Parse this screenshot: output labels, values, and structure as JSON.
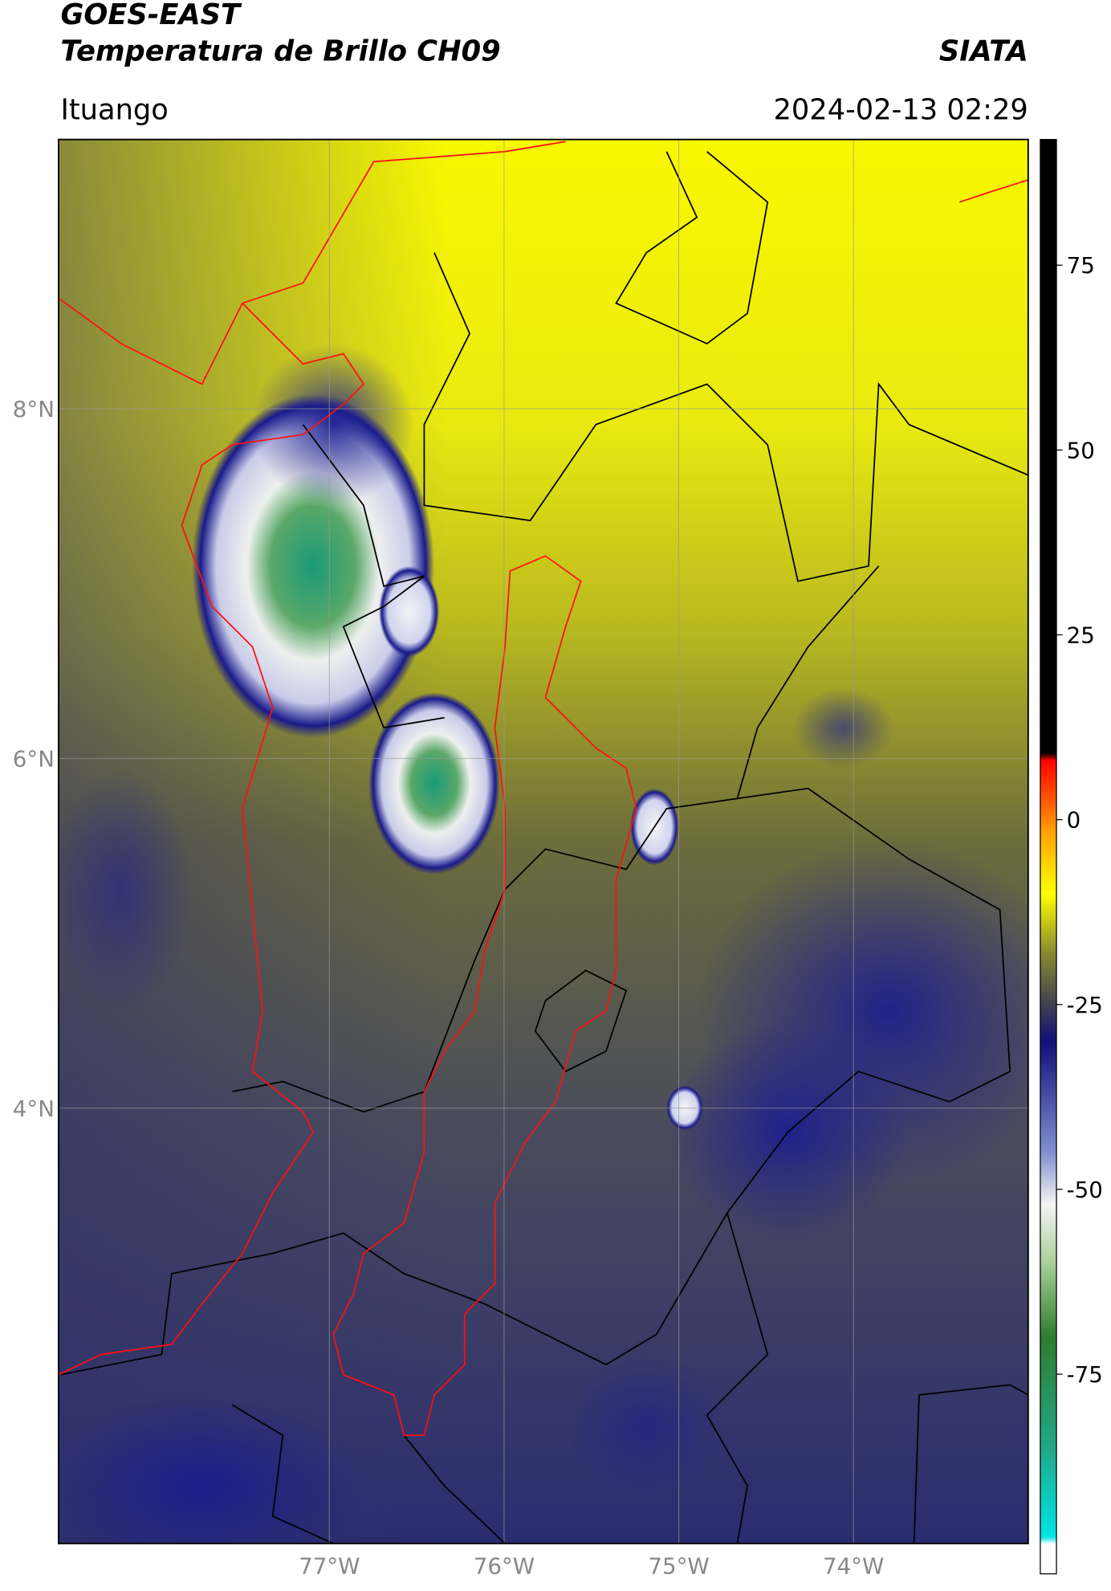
{
  "header": {
    "title": "GOES-EAST",
    "subtitle": "Temperatura de Brillo CH09",
    "agency": "SIATA",
    "location": "Ituango",
    "datetime": "2024-02-13 02:29"
  },
  "chart_data": {
    "type": "map",
    "xlim": [
      -78.55,
      -73.0
    ],
    "ylim": [
      1.51,
      9.54
    ],
    "xticks": [
      {
        "value": -77,
        "label": "77°W"
      },
      {
        "value": -76,
        "label": "76°W"
      },
      {
        "value": -75,
        "label": "75°W"
      },
      {
        "value": -74,
        "label": "74°W"
      }
    ],
    "yticks": [
      {
        "value": 4,
        "label": "4°N"
      },
      {
        "value": 6,
        "label": "6°N"
      },
      {
        "value": 8,
        "label": "8°N"
      }
    ],
    "grid": true,
    "colorbar": {
      "lim": [
        -102,
        92
      ],
      "ticks": [
        -75,
        -50,
        -25,
        0,
        25,
        50,
        75
      ],
      "colors": [
        {
          "value": -102,
          "color": "#ffffff"
        },
        {
          "value": -98,
          "color": "#ffffff"
        },
        {
          "value": -97,
          "color": "#00e5e5"
        },
        {
          "value": -85,
          "color": "#20a888"
        },
        {
          "value": -70,
          "color": "#2e7d2e"
        },
        {
          "value": -60,
          "color": "#a8d098"
        },
        {
          "value": -52,
          "color": "#f4f4f4"
        },
        {
          "value": -45,
          "color": "#8090d0"
        },
        {
          "value": -30,
          "color": "#10107a"
        },
        {
          "value": -25,
          "color": "#404050"
        },
        {
          "value": -18,
          "color": "#8a8a30"
        },
        {
          "value": -10,
          "color": "#ffff00"
        },
        {
          "value": -2,
          "color": "#ffa500"
        },
        {
          "value": 8,
          "color": "#ff0000"
        },
        {
          "value": 9,
          "color": "#000000"
        },
        {
          "value": 92,
          "color": "#000000"
        }
      ]
    }
  }
}
